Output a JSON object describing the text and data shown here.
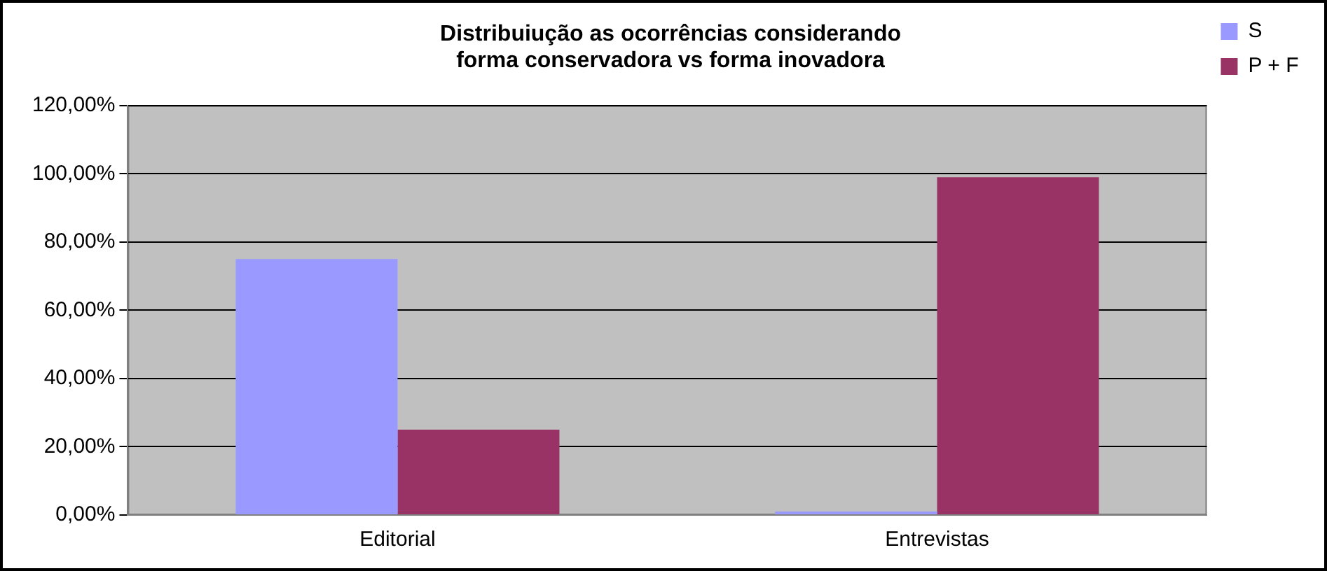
{
  "chart_data": {
    "type": "bar",
    "title": "Distribuiução as ocorrências considerando forma conservadora vs forma inovadora",
    "categories": [
      "Editorial",
      "Entrevistas"
    ],
    "series": [
      {
        "name": "S",
        "color": "#9999ff",
        "values": [
          75,
          1
        ]
      },
      {
        "name": "P + F",
        "color": "#993366",
        "values": [
          25,
          99
        ]
      }
    ],
    "ylim": [
      0,
      120
    ],
    "yticks": [
      {
        "value": 0,
        "label": "0,00%"
      },
      {
        "value": 20,
        "label": "20,00%"
      },
      {
        "value": 40,
        "label": "40,00%"
      },
      {
        "value": 60,
        "label": "60,00%"
      },
      {
        "value": 80,
        "label": "80,00%"
      },
      {
        "value": 100,
        "label": "100,00%"
      },
      {
        "value": 120,
        "label": "120,00%"
      }
    ],
    "grid": "y",
    "legend": "right"
  }
}
